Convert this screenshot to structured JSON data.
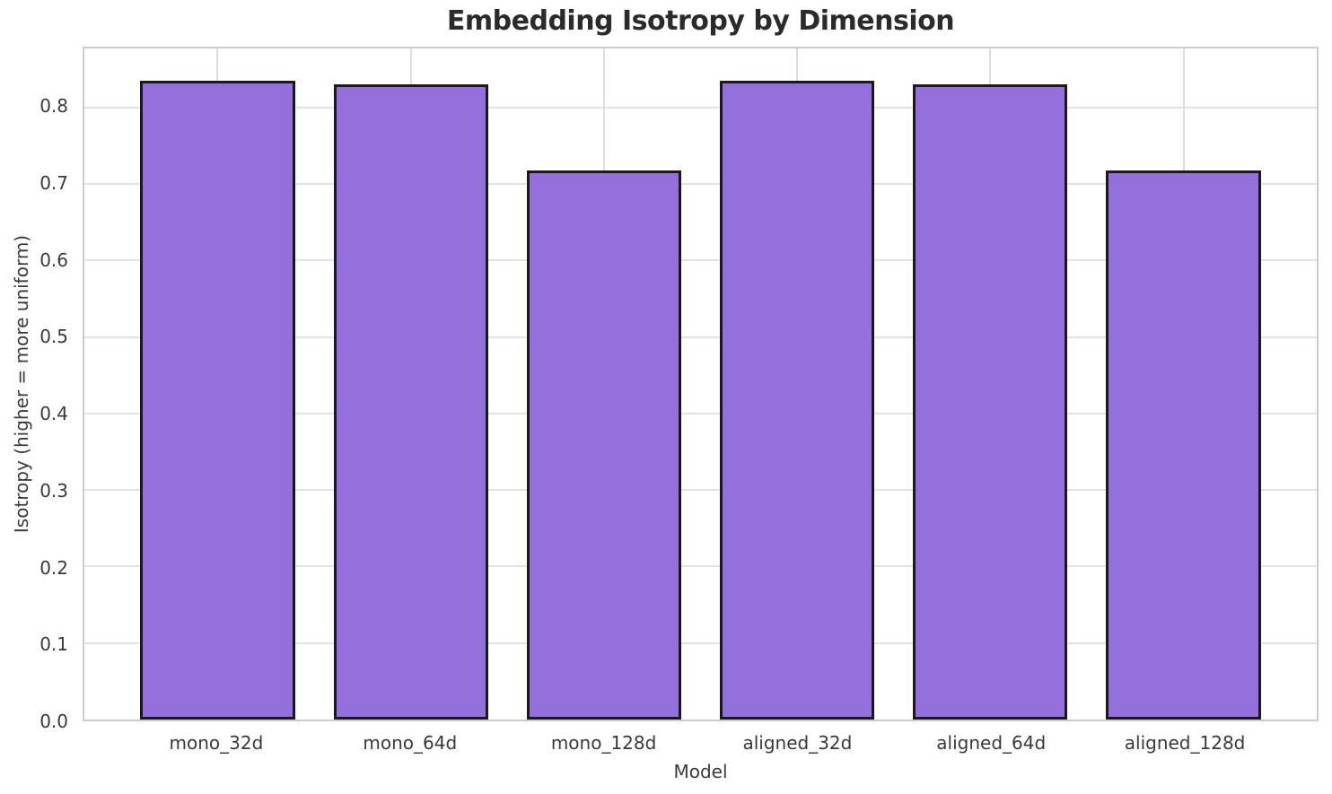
{
  "chart_data": {
    "type": "bar",
    "title": "Embedding Isotropy by Dimension",
    "xlabel": "Model",
    "ylabel": "Isotropy (higher = more uniform)",
    "categories": [
      "mono_32d",
      "mono_64d",
      "mono_128d",
      "aligned_32d",
      "aligned_64d",
      "aligned_128d"
    ],
    "values": [
      0.835,
      0.83,
      0.718,
      0.835,
      0.83,
      0.718
    ],
    "yticks": [
      0.0,
      0.1,
      0.2,
      0.3,
      0.4,
      0.5,
      0.6,
      0.7,
      0.8
    ],
    "ylim": [
      0,
      0.877
    ],
    "xlim": [
      -0.69,
      5.69
    ],
    "bar_width": 0.8,
    "grid": true,
    "legend": false,
    "colors": {
      "bar_fill": "#9370DB",
      "bar_edge": "#1a1a1a",
      "grid": "#e4e4e4",
      "spine": "#cccccc",
      "title": "#2b2b2b",
      "text": "#3a3a3a",
      "background": "#ffffff"
    }
  }
}
